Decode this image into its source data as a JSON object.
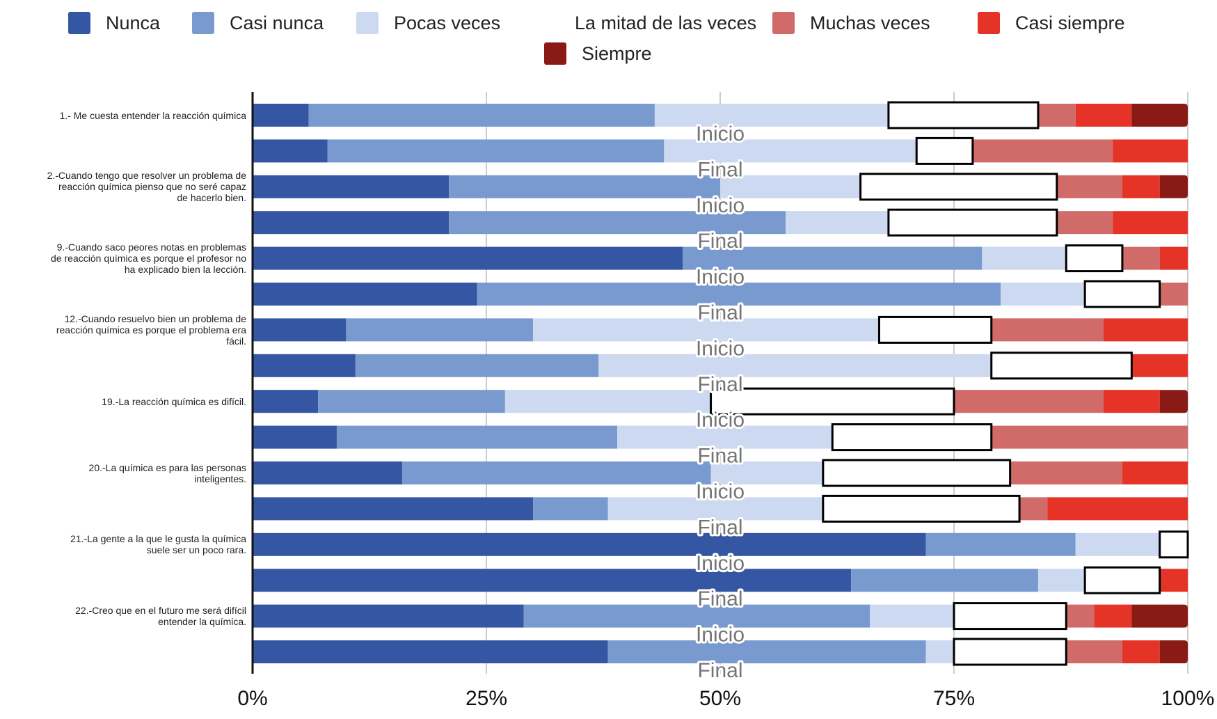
{
  "chart_data": {
    "type": "bar",
    "orientation": "horizontal",
    "stacked": "percent",
    "title": "",
    "xlabel": "",
    "ylabel": "",
    "xlim": [
      0,
      100
    ],
    "x_ticks": [
      "0%",
      "25%",
      "50%",
      "75%",
      "100%"
    ],
    "grid": true,
    "legend_position": "top",
    "series": [
      {
        "name": "Nunca",
        "color": "#3556a3"
      },
      {
        "name": "Casi nunca",
        "color": "#799acf"
      },
      {
        "name": "Pocas veces",
        "color": "#cdd9f0"
      },
      {
        "name": "La mitad de las veces",
        "color": "#ffffff",
        "outlined": true
      },
      {
        "name": "Muchas veces",
        "color": "#d06b69"
      },
      {
        "name": "Casi siempre",
        "color": "#e53427"
      },
      {
        "name": "Siempre",
        "color": "#8a1a16"
      }
    ],
    "questions": [
      {
        "label": "1.- Me cuesta entender la reacción química",
        "bars": [
          {
            "phase": "Inicio",
            "values": [
              6,
              37,
              25,
              16,
              4,
              6,
              6
            ]
          },
          {
            "phase": "Final",
            "values": [
              8,
              36,
              27,
              6,
              15,
              8,
              0
            ]
          }
        ]
      },
      {
        "label": "2.-Cuando tengo que resolver un problema de reacción química pienso que no seré capaz de hacerlo bien.",
        "label_lines": [
          "2.-Cuando tengo que resolver un problema de",
          "reacción química pienso que no seré capaz",
          "de hacerlo bien."
        ],
        "bars": [
          {
            "phase": "Inicio",
            "values": [
              21,
              29,
              15,
              21,
              7,
              4,
              3
            ]
          },
          {
            "phase": "Final",
            "values": [
              21,
              36,
              11,
              18,
              6,
              8,
              0
            ]
          }
        ]
      },
      {
        "label": "9.-Cuando saco peores notas en problemas de reacción química es porque el profesor no ha explicado bien la lección.",
        "label_lines": [
          "9.-Cuando saco peores notas en problemas",
          "de reacción química es porque el profesor no",
          "ha explicado bien la lección."
        ],
        "bars": [
          {
            "phase": "Inicio",
            "values": [
              46,
              32,
              9,
              6,
              4,
              3,
              0
            ]
          },
          {
            "phase": "Final",
            "values": [
              24,
              56,
              9,
              8,
              3,
              0,
              0
            ]
          }
        ]
      },
      {
        "label": "12.-Cuando resuelvo bien un problema de reacción química es porque el problema era fácil.",
        "label_lines": [
          "12.-Cuando resuelvo bien un problema de",
          "reacción química es porque el problema era",
          "fácil."
        ],
        "bars": [
          {
            "phase": "Inicio",
            "values": [
              10,
              20,
              37,
              12,
              12,
              9,
              0
            ]
          },
          {
            "phase": "Final",
            "values": [
              11,
              26,
              42,
              15,
              0,
              6,
              0
            ]
          }
        ]
      },
      {
        "label": "19.-La reacción química es difícil.",
        "label_lines": [
          "19.-La reacción química es difícil."
        ],
        "bars": [
          {
            "phase": "Inicio",
            "values": [
              7,
              20,
              22,
              26,
              16,
              6,
              3
            ]
          },
          {
            "phase": "Final",
            "values": [
              9,
              30,
              23,
              17,
              21,
              0,
              0
            ]
          }
        ]
      },
      {
        "label": "20.-La química es para las personas inteligentes.",
        "label_lines": [
          "20.-La química es para las personas",
          "inteligentes."
        ],
        "bars": [
          {
            "phase": "Inicio",
            "values": [
              16,
              33,
              12,
              20,
              12,
              7,
              0
            ]
          },
          {
            "phase": "Final",
            "values": [
              30,
              8,
              23,
              21,
              3,
              15,
              0
            ]
          }
        ]
      },
      {
        "label": "21.-La gente a la que le gusta la química suele ser un poco rara.",
        "label_lines": [
          "21.-La gente a la que le gusta la química",
          "suele ser un poco rara."
        ],
        "bars": [
          {
            "phase": "Inicio",
            "values": [
              72,
              16,
              9,
              3,
              0,
              0,
              0
            ]
          },
          {
            "phase": "Final",
            "values": [
              64,
              20,
              5,
              8,
              0,
              3,
              0
            ]
          }
        ]
      },
      {
        "label": "22.-Creo que en el futuro me será difícil entender la química.",
        "label_lines": [
          "22.-Creo que en el futuro me será difícil",
          "entender la química."
        ],
        "bars": [
          {
            "phase": "Inicio",
            "values": [
              29,
              37,
              9,
              12,
              3,
              4,
              6
            ]
          },
          {
            "phase": "Final",
            "values": [
              38,
              34,
              3,
              12,
              6,
              4,
              3
            ]
          }
        ]
      }
    ]
  }
}
